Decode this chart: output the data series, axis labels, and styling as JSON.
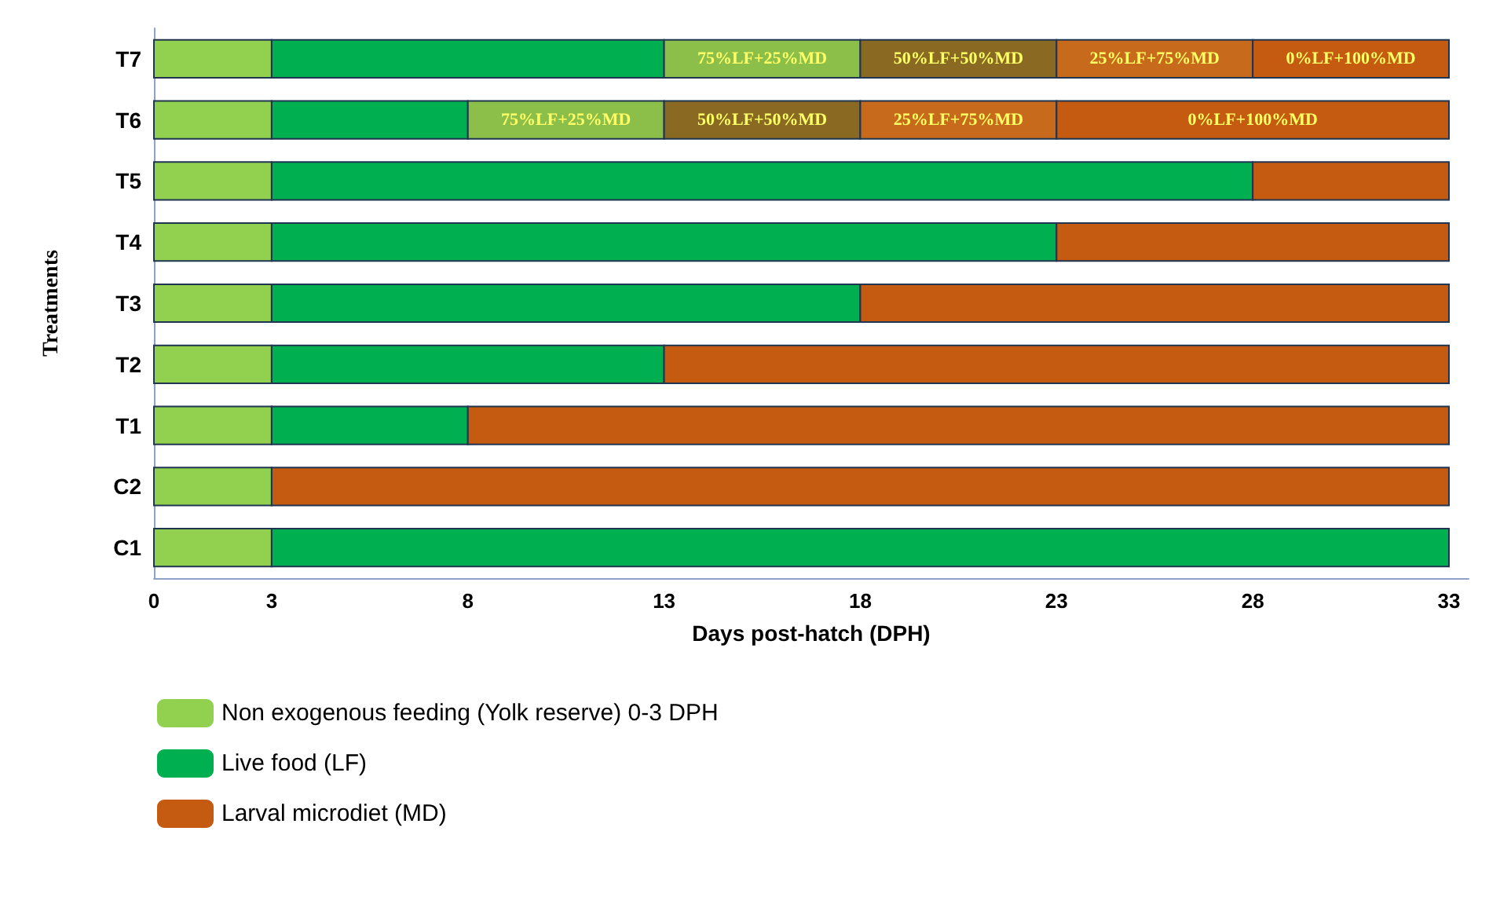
{
  "chart_data": {
    "type": "bar",
    "orientation": "horizontal",
    "xlabel": "Days post-hatch (DPH)",
    "ylabel": "Treatments",
    "categories": [
      "T7",
      "T6",
      "T5",
      "T4",
      "T3",
      "T2",
      "T1",
      "C2",
      "C1"
    ],
    "xlim": [
      0,
      33.5
    ],
    "xticks": [
      0,
      3,
      8,
      13,
      18,
      23,
      28,
      33
    ],
    "grid": false,
    "legend": "bottom left",
    "series": [
      {
        "name": "Non exogenous feeding (Yolk reserve) 0-3 DPH",
        "color": "#92d050",
        "base": [
          0,
          0,
          0,
          0,
          0,
          0,
          0,
          0,
          0
        ],
        "values": [
          3,
          3,
          3,
          3,
          3,
          3,
          3,
          3,
          3
        ]
      },
      {
        "name": "Live food (LF)",
        "color": "#00b050",
        "base": [
          3,
          3,
          3,
          3,
          3,
          3,
          3,
          null,
          3
        ],
        "values": [
          10,
          5,
          25,
          20,
          15,
          10,
          5,
          null,
          30
        ]
      },
      {
        "name": "Larval microdiet (MD)",
        "color": "#c55a11",
        "base": [
          null,
          null,
          28,
          23,
          18,
          13,
          8,
          3,
          null
        ],
        "values": [
          null,
          null,
          5,
          10,
          15,
          20,
          25,
          30,
          null
        ]
      },
      {
        "name": "75%LF+25%MD",
        "color": "#8cbf4a",
        "base": [
          13,
          8,
          null,
          null,
          null,
          null,
          null,
          null,
          null
        ],
        "values": [
          5,
          5,
          null,
          null,
          null,
          null,
          null,
          null,
          null
        ]
      },
      {
        "name": "50%LF+50%MD",
        "color": "#8a6a22",
        "base": [
          18,
          13,
          null,
          null,
          null,
          null,
          null,
          null,
          null
        ],
        "values": [
          5,
          5,
          null,
          null,
          null,
          null,
          null,
          null,
          null
        ]
      },
      {
        "name": "25%LF+75%MD",
        "color": "#c86a1c",
        "base": [
          23,
          18,
          null,
          null,
          null,
          null,
          null,
          null,
          null
        ],
        "values": [
          5,
          5,
          null,
          null,
          null,
          null,
          null,
          null,
          null
        ]
      },
      {
        "name": "0%LF+100%MD",
        "color": "#c55a11",
        "base": [
          28,
          23,
          null,
          null,
          null,
          null,
          null,
          null,
          null
        ],
        "values": [
          5,
          10,
          null,
          null,
          null,
          null,
          null,
          null,
          null
        ]
      }
    ]
  }
}
